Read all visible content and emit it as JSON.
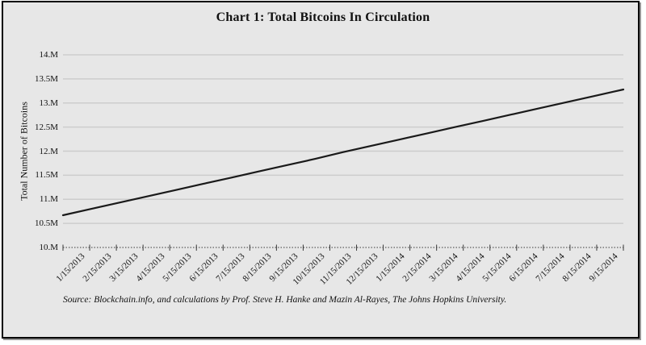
{
  "title": "Chart 1: Total Bitcoins In Circulation",
  "source_note": "Source: Blockchain.info, and calculations by Prof. Steve H. Hanke and Mazin Al-Rayes, The Johns Hopkins University.",
  "colors": {
    "frame_background": "#e7e7e7",
    "frame_border": "#000000",
    "gridline": "#cdcdcd",
    "axis": "#3a3a3a",
    "series_line": "#1a1a1a",
    "text": "#111111"
  },
  "chart_data": {
    "type": "line",
    "title": "Chart 1: Total Bitcoins In Circulation",
    "xlabel": "",
    "ylabel": "Total Number of Bitcoins",
    "ylim": [
      10,
      14
    ],
    "ytick_step": 0.5,
    "ytick_labels": [
      "10.M",
      "10.5M",
      "11.M",
      "11.5M",
      "12.M",
      "12.5M",
      "13.M",
      "13.5M",
      "14.M"
    ],
    "grid": true,
    "legend": false,
    "categories": [
      "1/15/2013",
      "2/15/2013",
      "3/15/2013",
      "4/15/2013",
      "5/15/2013",
      "6/15/2013",
      "7/15/2013",
      "8/15/2013",
      "9/15/2013",
      "10/15/2013",
      "11/15/2013",
      "12/15/2013",
      "1/15/2014",
      "2/15/2014",
      "3/15/2014",
      "4/15/2014",
      "5/15/2014",
      "6/15/2014",
      "7/15/2014",
      "8/15/2014",
      "9/15/2014"
    ],
    "values": [
      10.67,
      10.8,
      10.93,
      11.06,
      11.19,
      11.32,
      11.45,
      11.58,
      11.71,
      11.84,
      11.98,
      12.11,
      12.24,
      12.37,
      12.5,
      12.63,
      12.76,
      12.89,
      13.02,
      13.15,
      13.28
    ]
  }
}
